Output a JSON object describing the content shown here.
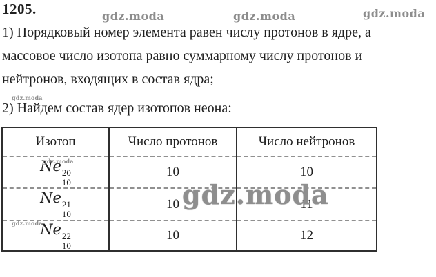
{
  "header": {
    "problem_number": "1205."
  },
  "watermark": {
    "text": "gdz.moda"
  },
  "solution": {
    "line1": "1) Порядковый номер элемента равен числу протонов в ядре, а",
    "line2": "массовое число изотопа равно суммарному числу протонов и",
    "line3": "нейтронов, входящих в состав ядра;",
    "line4": "2) Найдем состав ядер изотопов неона:"
  },
  "table": {
    "headers": [
      "Изотоп",
      "Число протонов",
      "Число нейтронов"
    ],
    "rows": [
      {
        "element": "Ne",
        "mass": "20",
        "charge": "10",
        "protons": "10",
        "neutrons": "10"
      },
      {
        "element": "Ne",
        "mass": "21",
        "charge": "10",
        "protons": "10",
        "neutrons": "11"
      },
      {
        "element": "Ne",
        "mass": "22",
        "charge": "10",
        "protons": "10",
        "neutrons": "12"
      }
    ]
  },
  "colors": {
    "text": "#1f1f1f",
    "watermark": "#8d8d8d",
    "table_border": "#2f2f2f",
    "row_divider": "#909090",
    "background": "#ffffff"
  }
}
